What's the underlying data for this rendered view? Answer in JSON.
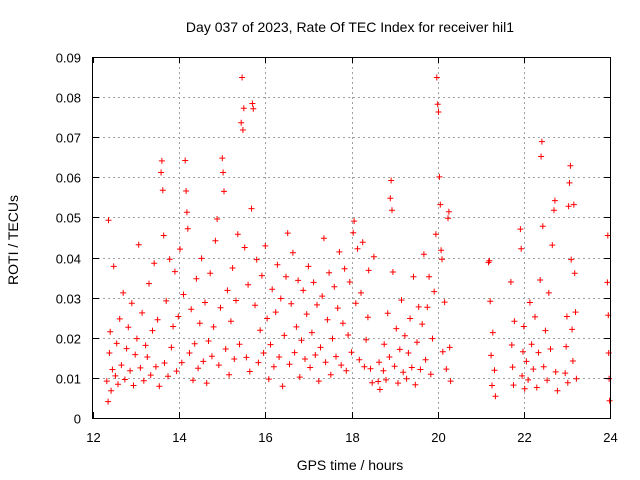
{
  "chart_data": {
    "type": "scatter",
    "title": "Day 037 of 2023, Rate Of TEC Index for receiver hil1",
    "xlabel": "GPS time / hours",
    "ylabel": "ROTI / TECUs",
    "xlim": [
      12,
      24
    ],
    "ylim": [
      0,
      0.09
    ],
    "x_ticks": [
      12,
      14,
      16,
      18,
      20,
      22,
      24
    ],
    "y_ticks": [
      0,
      0.01,
      0.02,
      0.03,
      0.04,
      0.05,
      0.06,
      0.07,
      0.08,
      0.09
    ],
    "x_tick_labels": [
      "12",
      "14",
      "16",
      "18",
      "20",
      "22",
      "24"
    ],
    "y_tick_labels": [
      "0",
      "0.01",
      "0.02",
      "0.03",
      "0.04",
      "0.05",
      "0.06",
      "0.07",
      "0.08",
      "0.09"
    ],
    "grid": true,
    "marker": "+",
    "color": "#ff0000",
    "series": [
      {
        "name": "hil1",
        "points": [
          [
            12.32,
            0.0092
          ],
          [
            12.35,
            0.0041
          ],
          [
            12.36,
            0.0493
          ],
          [
            12.38,
            0.0162
          ],
          [
            12.4,
            0.0215
          ],
          [
            12.42,
            0.0068
          ],
          [
            12.45,
            0.0121
          ],
          [
            12.48,
            0.0378
          ],
          [
            12.52,
            0.0105
          ],
          [
            12.55,
            0.0186
          ],
          [
            12.58,
            0.0084
          ],
          [
            12.62,
            0.0247
          ],
          [
            12.66,
            0.0132
          ],
          [
            12.7,
            0.0312
          ],
          [
            12.74,
            0.0096
          ],
          [
            12.78,
            0.0173
          ],
          [
            12.82,
            0.0226
          ],
          [
            12.86,
            0.0118
          ],
          [
            12.9,
            0.0286
          ],
          [
            12.94,
            0.0081
          ],
          [
            12.98,
            0.0158
          ],
          [
            13.02,
            0.0198
          ],
          [
            13.06,
            0.0432
          ],
          [
            13.1,
            0.0125
          ],
          [
            13.14,
            0.0262
          ],
          [
            13.18,
            0.0093
          ],
          [
            13.22,
            0.0181
          ],
          [
            13.26,
            0.0152
          ],
          [
            13.3,
            0.0335
          ],
          [
            13.34,
            0.0107
          ],
          [
            13.38,
            0.0218
          ],
          [
            13.42,
            0.0386
          ],
          [
            13.46,
            0.0128
          ],
          [
            13.5,
            0.0245
          ],
          [
            13.54,
            0.0079
          ],
          [
            13.58,
            0.0612
          ],
          [
            13.6,
            0.0641
          ],
          [
            13.62,
            0.0568
          ],
          [
            13.64,
            0.0455
          ],
          [
            13.66,
            0.0137
          ],
          [
            13.7,
            0.0292
          ],
          [
            13.74,
            0.0104
          ],
          [
            13.78,
            0.0396
          ],
          [
            13.82,
            0.0176
          ],
          [
            13.86,
            0.0228
          ],
          [
            13.9,
            0.0365
          ],
          [
            13.94,
            0.0117
          ],
          [
            13.98,
            0.0253
          ],
          [
            14.02,
            0.0421
          ],
          [
            14.06,
            0.0138
          ],
          [
            14.1,
            0.0308
          ],
          [
            14.14,
            0.0642
          ],
          [
            14.16,
            0.0566
          ],
          [
            14.18,
            0.0513
          ],
          [
            14.2,
            0.0472
          ],
          [
            14.24,
            0.0162
          ],
          [
            14.28,
            0.0271
          ],
          [
            14.32,
            0.0094
          ],
          [
            14.36,
            0.0185
          ],
          [
            14.4,
            0.0347
          ],
          [
            14.44,
            0.0124
          ],
          [
            14.48,
            0.0236
          ],
          [
            14.52,
            0.0398
          ],
          [
            14.56,
            0.0141
          ],
          [
            14.6,
            0.0288
          ],
          [
            14.64,
            0.0087
          ],
          [
            14.68,
            0.0192
          ],
          [
            14.72,
            0.0361
          ],
          [
            14.76,
            0.0154
          ],
          [
            14.8,
            0.0227
          ],
          [
            14.84,
            0.0442
          ],
          [
            14.88,
            0.0496
          ],
          [
            14.92,
            0.0132
          ],
          [
            14.96,
            0.0275
          ],
          [
            15.0,
            0.0648
          ],
          [
            15.02,
            0.0612
          ],
          [
            15.04,
            0.0565
          ],
          [
            15.08,
            0.0172
          ],
          [
            15.12,
            0.0318
          ],
          [
            15.16,
            0.0108
          ],
          [
            15.2,
            0.0241
          ],
          [
            15.24,
            0.0374
          ],
          [
            15.28,
            0.0147
          ],
          [
            15.32,
            0.0293
          ],
          [
            15.36,
            0.0458
          ],
          [
            15.4,
            0.0184
          ],
          [
            15.44,
            0.0736
          ],
          [
            15.46,
            0.0849
          ],
          [
            15.48,
            0.0718
          ],
          [
            15.5,
            0.0772
          ],
          [
            15.52,
            0.0425
          ],
          [
            15.56,
            0.0151
          ],
          [
            15.6,
            0.0332
          ],
          [
            15.64,
            0.0116
          ],
          [
            15.68,
            0.0522
          ],
          [
            15.7,
            0.0784
          ],
          [
            15.72,
            0.0771
          ],
          [
            15.76,
            0.0281
          ],
          [
            15.8,
            0.0395
          ],
          [
            15.84,
            0.0138
          ],
          [
            15.88,
            0.0219
          ],
          [
            15.92,
            0.0355
          ],
          [
            15.96,
            0.0162
          ],
          [
            16.0,
            0.0429
          ],
          [
            16.04,
            0.0248
          ],
          [
            16.08,
            0.0097
          ],
          [
            16.12,
            0.0183
          ],
          [
            16.16,
            0.0321
          ],
          [
            16.2,
            0.0128
          ],
          [
            16.24,
            0.0264
          ],
          [
            16.28,
            0.0382
          ],
          [
            16.32,
            0.0152
          ],
          [
            16.36,
            0.0298
          ],
          [
            16.4,
            0.0079
          ],
          [
            16.44,
            0.0206
          ],
          [
            16.48,
            0.0352
          ],
          [
            16.52,
            0.0461
          ],
          [
            16.56,
            0.0134
          ],
          [
            16.6,
            0.0285
          ],
          [
            16.64,
            0.0412
          ],
          [
            16.68,
            0.0163
          ],
          [
            16.72,
            0.0227
          ],
          [
            16.76,
            0.0343
          ],
          [
            16.8,
            0.0102
          ],
          [
            16.84,
            0.0194
          ],
          [
            16.88,
            0.0318
          ],
          [
            16.92,
            0.0147
          ],
          [
            16.96,
            0.0259
          ],
          [
            17.0,
            0.0378
          ],
          [
            17.04,
            0.0126
          ],
          [
            17.08,
            0.0213
          ],
          [
            17.12,
            0.0338
          ],
          [
            17.16,
            0.0157
          ],
          [
            17.2,
            0.0282
          ],
          [
            17.24,
            0.0092
          ],
          [
            17.28,
            0.0176
          ],
          [
            17.32,
            0.0304
          ],
          [
            17.36,
            0.0448
          ],
          [
            17.4,
            0.0139
          ],
          [
            17.44,
            0.0245
          ],
          [
            17.48,
            0.0362
          ],
          [
            17.52,
            0.0108
          ],
          [
            17.56,
            0.0198
          ],
          [
            17.6,
            0.0327
          ],
          [
            17.64,
            0.0153
          ],
          [
            17.68,
            0.0274
          ],
          [
            17.72,
            0.0414
          ],
          [
            17.76,
            0.0132
          ],
          [
            17.8,
            0.0236
          ],
          [
            17.84,
            0.0372
          ],
          [
            17.88,
            0.0118
          ],
          [
            17.92,
            0.0207
          ],
          [
            17.96,
            0.0339
          ],
          [
            18.0,
            0.0164
          ],
          [
            18.04,
            0.0462
          ],
          [
            18.06,
            0.0491
          ],
          [
            18.1,
            0.0286
          ],
          [
            18.14,
            0.0422
          ],
          [
            18.18,
            0.0145
          ],
          [
            18.22,
            0.0312
          ],
          [
            18.26,
            0.0438
          ],
          [
            18.3,
            0.0128
          ],
          [
            18.34,
            0.0195
          ],
          [
            18.38,
            0.0251
          ],
          [
            18.4,
            0.0368
          ],
          [
            18.44,
            0.0123
          ],
          [
            18.48,
            0.0088
          ],
          [
            18.52,
            0.0402
          ],
          [
            18.62,
            0.0091
          ],
          [
            18.64,
            0.0139
          ],
          [
            18.66,
            0.0071
          ],
          [
            18.74,
            0.0118
          ],
          [
            18.76,
            0.0184
          ],
          [
            18.8,
            0.0095
          ],
          [
            18.84,
            0.0261
          ],
          [
            18.88,
            0.0152
          ],
          [
            18.9,
            0.0548
          ],
          [
            18.92,
            0.0592
          ],
          [
            18.94,
            0.0518
          ],
          [
            18.96,
            0.0364
          ],
          [
            19.0,
            0.0129
          ],
          [
            19.04,
            0.0223
          ],
          [
            19.08,
            0.0087
          ],
          [
            19.12,
            0.0171
          ],
          [
            19.16,
            0.0294
          ],
          [
            19.2,
            0.0114
          ],
          [
            19.24,
            0.0205
          ],
          [
            19.28,
            0.0098
          ],
          [
            19.32,
            0.0162
          ],
          [
            19.36,
            0.0248
          ],
          [
            19.4,
            0.0126
          ],
          [
            19.44,
            0.0352
          ],
          [
            19.48,
            0.0083
          ],
          [
            19.52,
            0.0189
          ],
          [
            19.56,
            0.0277
          ],
          [
            19.6,
            0.0121
          ],
          [
            19.64,
            0.0234
          ],
          [
            19.68,
            0.0408
          ],
          [
            19.72,
            0.0145
          ],
          [
            19.76,
            0.0276
          ],
          [
            19.8,
            0.0352
          ],
          [
            19.84,
            0.0109
          ],
          [
            19.88,
            0.0198
          ],
          [
            19.92,
            0.0315
          ],
          [
            19.96,
            0.0458
          ],
          [
            19.98,
            0.0849
          ],
          [
            20.0,
            0.0782
          ],
          [
            20.02,
            0.0763
          ],
          [
            20.04,
            0.0601
          ],
          [
            20.06,
            0.0532
          ],
          [
            20.08,
            0.0418
          ],
          [
            20.1,
            0.0396
          ],
          [
            20.12,
            0.0165
          ],
          [
            20.16,
            0.0289
          ],
          [
            20.2,
            0.0122
          ],
          [
            20.24,
            0.0498
          ],
          [
            20.26,
            0.0514
          ],
          [
            20.28,
            0.0176
          ],
          [
            20.3,
            0.0092
          ],
          [
            21.18,
            0.0388
          ],
          [
            21.2,
            0.0392
          ],
          [
            21.22,
            0.0291
          ],
          [
            21.24,
            0.0156
          ],
          [
            21.26,
            0.0081
          ],
          [
            21.28,
            0.0213
          ],
          [
            21.32,
            0.0119
          ],
          [
            21.34,
            0.0054
          ],
          [
            21.7,
            0.0339
          ],
          [
            21.72,
            0.0182
          ],
          [
            21.74,
            0.0127
          ],
          [
            21.76,
            0.0082
          ],
          [
            21.78,
            0.0241
          ],
          [
            21.92,
            0.0471
          ],
          [
            21.94,
            0.0422
          ],
          [
            21.96,
            0.0105
          ],
          [
            21.98,
            0.0165
          ],
          [
            22.0,
            0.0228
          ],
          [
            22.02,
            0.0073
          ],
          [
            22.06,
            0.0141
          ],
          [
            22.1,
            0.0095
          ],
          [
            22.14,
            0.0288
          ],
          [
            22.18,
            0.0184
          ],
          [
            22.22,
            0.0122
          ],
          [
            22.26,
            0.0252
          ],
          [
            22.3,
            0.0076
          ],
          [
            22.34,
            0.0163
          ],
          [
            22.38,
            0.0344
          ],
          [
            22.4,
            0.0652
          ],
          [
            22.42,
            0.0689
          ],
          [
            22.44,
            0.0478
          ],
          [
            22.46,
            0.0128
          ],
          [
            22.5,
            0.0218
          ],
          [
            22.54,
            0.0094
          ],
          [
            22.58,
            0.0312
          ],
          [
            22.62,
            0.0172
          ],
          [
            22.66,
            0.0431
          ],
          [
            22.7,
            0.0518
          ],
          [
            22.72,
            0.0542
          ],
          [
            22.74,
            0.0115
          ],
          [
            22.78,
            0.0068
          ],
          [
            22.96,
            0.0112
          ],
          [
            22.98,
            0.0178
          ],
          [
            23.0,
            0.0253
          ],
          [
            23.02,
            0.0088
          ],
          [
            23.04,
            0.0528
          ],
          [
            23.06,
            0.0586
          ],
          [
            23.08,
            0.0629
          ],
          [
            23.1,
            0.0395
          ],
          [
            23.12,
            0.0221
          ],
          [
            23.14,
            0.0142
          ],
          [
            23.16,
            0.0532
          ],
          [
            23.18,
            0.0361
          ],
          [
            23.2,
            0.0264
          ],
          [
            23.22,
            0.0098
          ],
          [
            23.94,
            0.0338
          ],
          [
            23.95,
            0.0455
          ],
          [
            23.96,
            0.0256
          ],
          [
            23.97,
            0.0162
          ],
          [
            23.98,
            0.0098
          ],
          [
            23.99,
            0.0043
          ]
        ]
      }
    ]
  }
}
